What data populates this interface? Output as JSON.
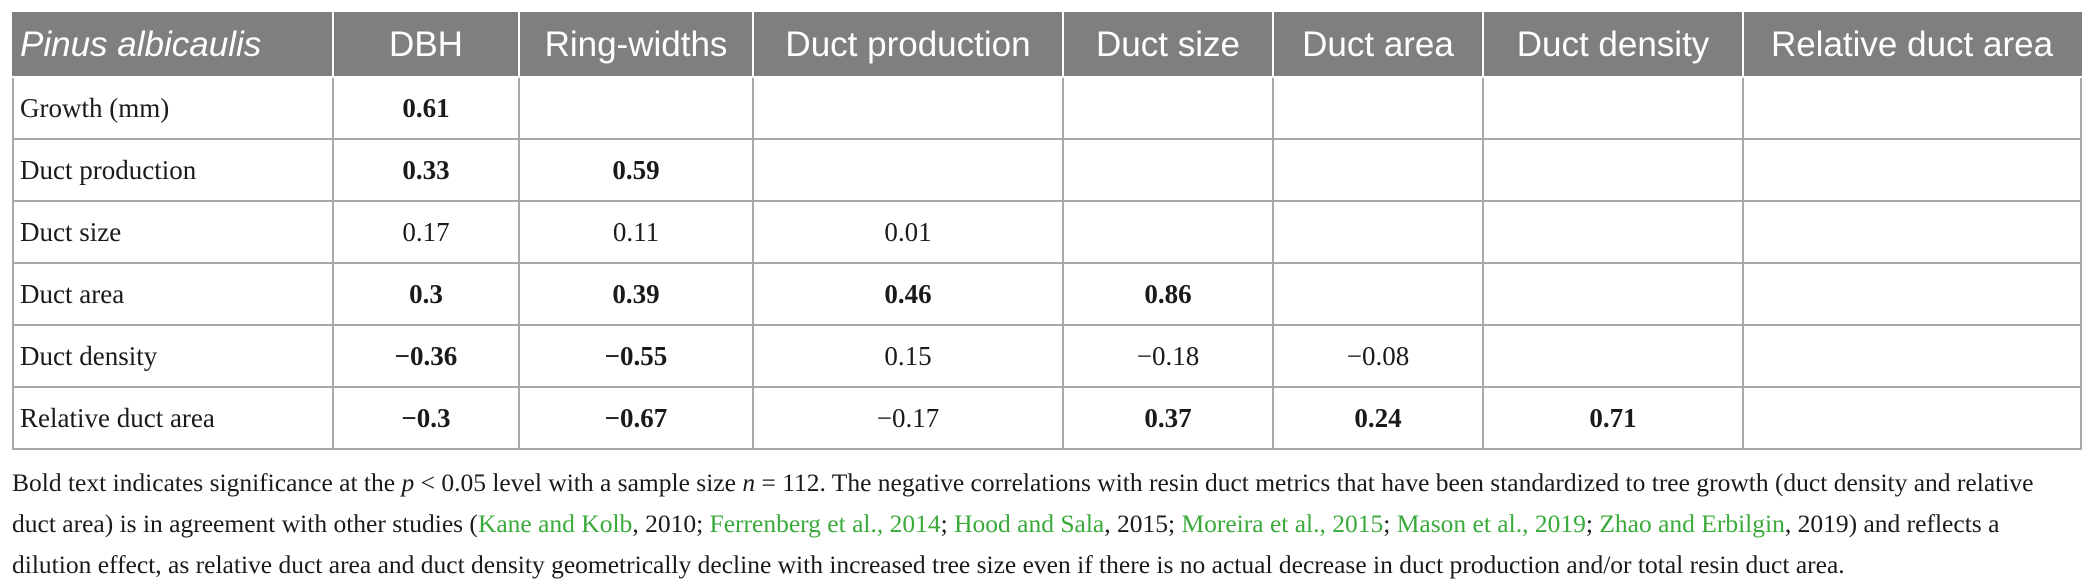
{
  "table": {
    "headers": [
      "Pinus albicaulis",
      "DBH",
      "Ring-widths",
      "Duct production",
      "Duct size",
      "Duct area",
      "Duct density",
      "Relative duct area"
    ],
    "rows": [
      {
        "label": "Growth (mm)",
        "cells": [
          {
            "v": "0.61",
            "sig": true
          },
          {
            "v": "",
            "sig": false
          },
          {
            "v": "",
            "sig": false
          },
          {
            "v": "",
            "sig": false
          },
          {
            "v": "",
            "sig": false
          },
          {
            "v": "",
            "sig": false
          },
          {
            "v": "",
            "sig": false
          }
        ]
      },
      {
        "label": "Duct production",
        "cells": [
          {
            "v": "0.33",
            "sig": true
          },
          {
            "v": "0.59",
            "sig": true
          },
          {
            "v": "",
            "sig": false
          },
          {
            "v": "",
            "sig": false
          },
          {
            "v": "",
            "sig": false
          },
          {
            "v": "",
            "sig": false
          },
          {
            "v": "",
            "sig": false
          }
        ]
      },
      {
        "label": "Duct size",
        "cells": [
          {
            "v": "0.17",
            "sig": false
          },
          {
            "v": "0.11",
            "sig": false
          },
          {
            "v": "0.01",
            "sig": false
          },
          {
            "v": "",
            "sig": false
          },
          {
            "v": "",
            "sig": false
          },
          {
            "v": "",
            "sig": false
          },
          {
            "v": "",
            "sig": false
          }
        ]
      },
      {
        "label": "Duct area",
        "cells": [
          {
            "v": "0.3",
            "sig": true
          },
          {
            "v": "0.39",
            "sig": true
          },
          {
            "v": "0.46",
            "sig": true
          },
          {
            "v": "0.86",
            "sig": true
          },
          {
            "v": "",
            "sig": false
          },
          {
            "v": "",
            "sig": false
          },
          {
            "v": "",
            "sig": false
          }
        ]
      },
      {
        "label": "Duct density",
        "cells": [
          {
            "v": "−0.36",
            "sig": true
          },
          {
            "v": "−0.55",
            "sig": true
          },
          {
            "v": "0.15",
            "sig": false
          },
          {
            "v": "−0.18",
            "sig": false
          },
          {
            "v": "−0.08",
            "sig": false
          },
          {
            "v": "",
            "sig": false
          },
          {
            "v": "",
            "sig": false
          }
        ]
      },
      {
        "label": "Relative duct area",
        "cells": [
          {
            "v": "−0.3",
            "sig": true
          },
          {
            "v": "−0.67",
            "sig": true
          },
          {
            "v": "−0.17",
            "sig": false
          },
          {
            "v": "0.37",
            "sig": true
          },
          {
            "v": "0.24",
            "sig": true
          },
          {
            "v": "0.71",
            "sig": true
          },
          {
            "v": "",
            "sig": false
          }
        ]
      }
    ]
  },
  "footnote": {
    "t1": "Bold text indicates significance at the ",
    "p": "p",
    "t2": " < 0.05 level with a sample size ",
    "n": "n",
    "t3": " = 112. The negative correlations with resin duct metrics that have been standardized to tree growth (duct density and relative duct area) is in agreement with other studies (",
    "c1": "Kane and Kolb",
    "y1": ", 2010; ",
    "c2": "Ferrenberg et al., 2014",
    "s2": "; ",
    "c3": "Hood and Sala",
    "y3": ", 2015; ",
    "c4": "Moreira et al., 2015",
    "s4": "; ",
    "c5": "Mason et al., 2019",
    "s5": "; ",
    "c6": "Zhao and Erbilgin",
    "y6": ", 2019",
    "t4": ") and reflects a dilution effect, as relative duct area and duct density geometrically decline with increased tree size even if there is no actual decrease in duct production and/or total resin duct area."
  },
  "colors": {
    "header_bg": "#7f7f7f",
    "header_text": "#ffffff",
    "grid": "#a8a8a8",
    "citation_link": "#3aab3a"
  }
}
